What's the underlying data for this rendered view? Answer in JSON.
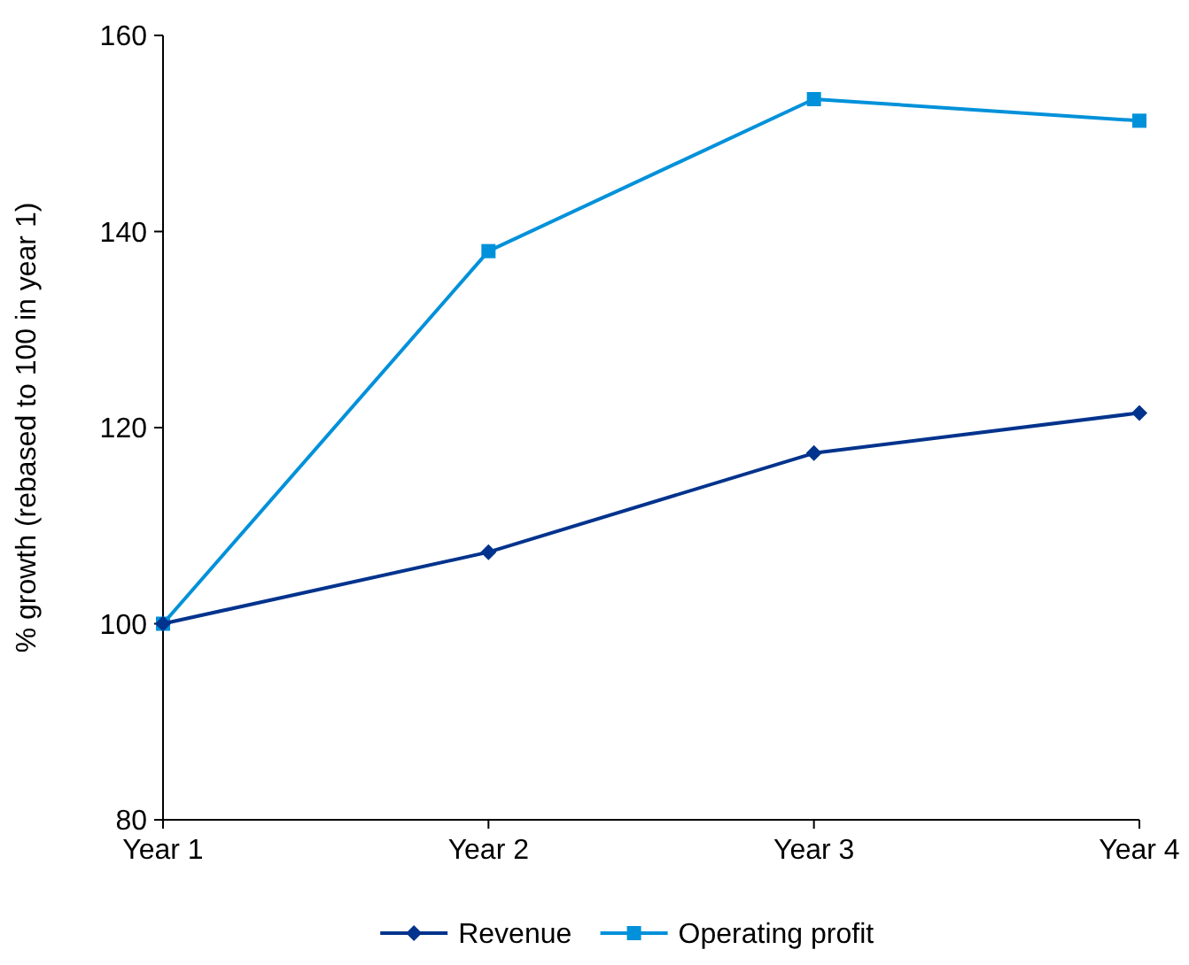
{
  "chart_data": {
    "type": "line",
    "ylabel": "% growth (rebased to 100 in year 1)",
    "categories": [
      "Year 1",
      "Year 2",
      "Year 3",
      "Year 4"
    ],
    "series": [
      {
        "name": "Revenue",
        "color": "#00338d",
        "marker": "diamond",
        "values": [
          100,
          107.3,
          117.4,
          121.5
        ]
      },
      {
        "name": "Operating profit",
        "color": "#0091da",
        "marker": "square",
        "values": [
          100,
          138,
          153.5,
          151.3
        ]
      }
    ],
    "ylim": [
      80,
      160
    ],
    "yticks": [
      80,
      100,
      120,
      140,
      160
    ],
    "grid": false,
    "legend": "bottom",
    "line_style": "solid"
  }
}
